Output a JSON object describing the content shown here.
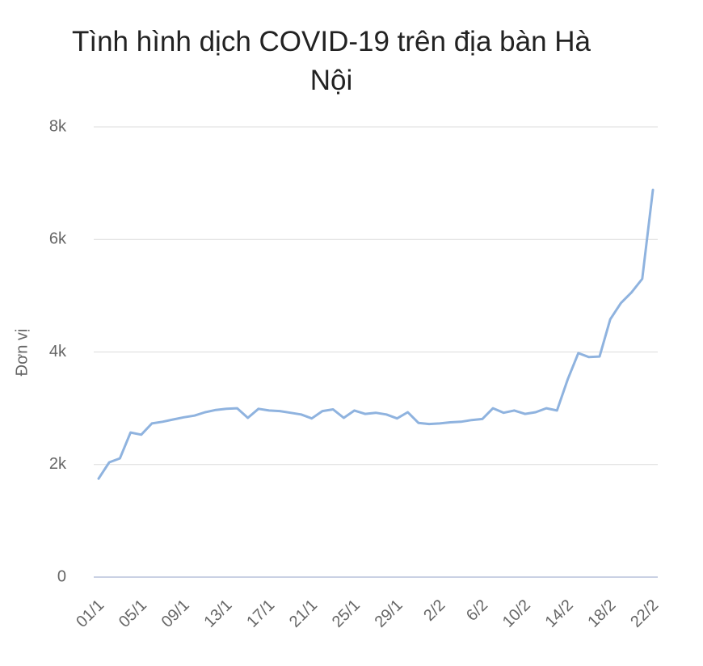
{
  "chart_data": {
    "type": "line",
    "title": "Tình hình dịch COVID-19 trên địa bàn Hà Nội",
    "y_label": "Đơn vị",
    "categories": [
      "01/1",
      null,
      null,
      null,
      "05/1",
      null,
      null,
      null,
      "09/1",
      null,
      null,
      null,
      "13/1",
      null,
      null,
      null,
      "17/1",
      null,
      null,
      null,
      "21/1",
      null,
      null,
      null,
      "25/1",
      null,
      null,
      null,
      "29/1",
      null,
      null,
      null,
      "2/2",
      null,
      null,
      null,
      "6/2",
      null,
      null,
      null,
      "10/2",
      null,
      null,
      null,
      "14/2",
      null,
      null,
      null,
      "18/2",
      null,
      null,
      null,
      "22/2"
    ],
    "series": [
      {
        "name": "Đơn vị",
        "color": "#8fb3df",
        "values": [
          1750,
          2040,
          2110,
          2570,
          2530,
          2730,
          2760,
          2800,
          2840,
          2870,
          2930,
          2970,
          2990,
          3000,
          2830,
          2990,
          2960,
          2950,
          2920,
          2890,
          2820,
          2950,
          2980,
          2830,
          2960,
          2900,
          2920,
          2890,
          2820,
          2930,
          2740,
          2720,
          2730,
          2750,
          2760,
          2790,
          2810,
          3000,
          2920,
          2960,
          2900,
          2930,
          3000,
          2960,
          3510,
          3980,
          3910,
          3920,
          4580,
          4870,
          5060,
          5300,
          6880
        ]
      }
    ],
    "ylim": [
      0,
      8000
    ],
    "yticks": [
      0,
      {
        "value": 2000,
        "label": "2k"
      },
      {
        "value": 4000,
        "label": "4k"
      },
      {
        "value": 6000,
        "label": "6k"
      },
      {
        "value": 8000,
        "label": "8k"
      }
    ],
    "grid": true
  }
}
